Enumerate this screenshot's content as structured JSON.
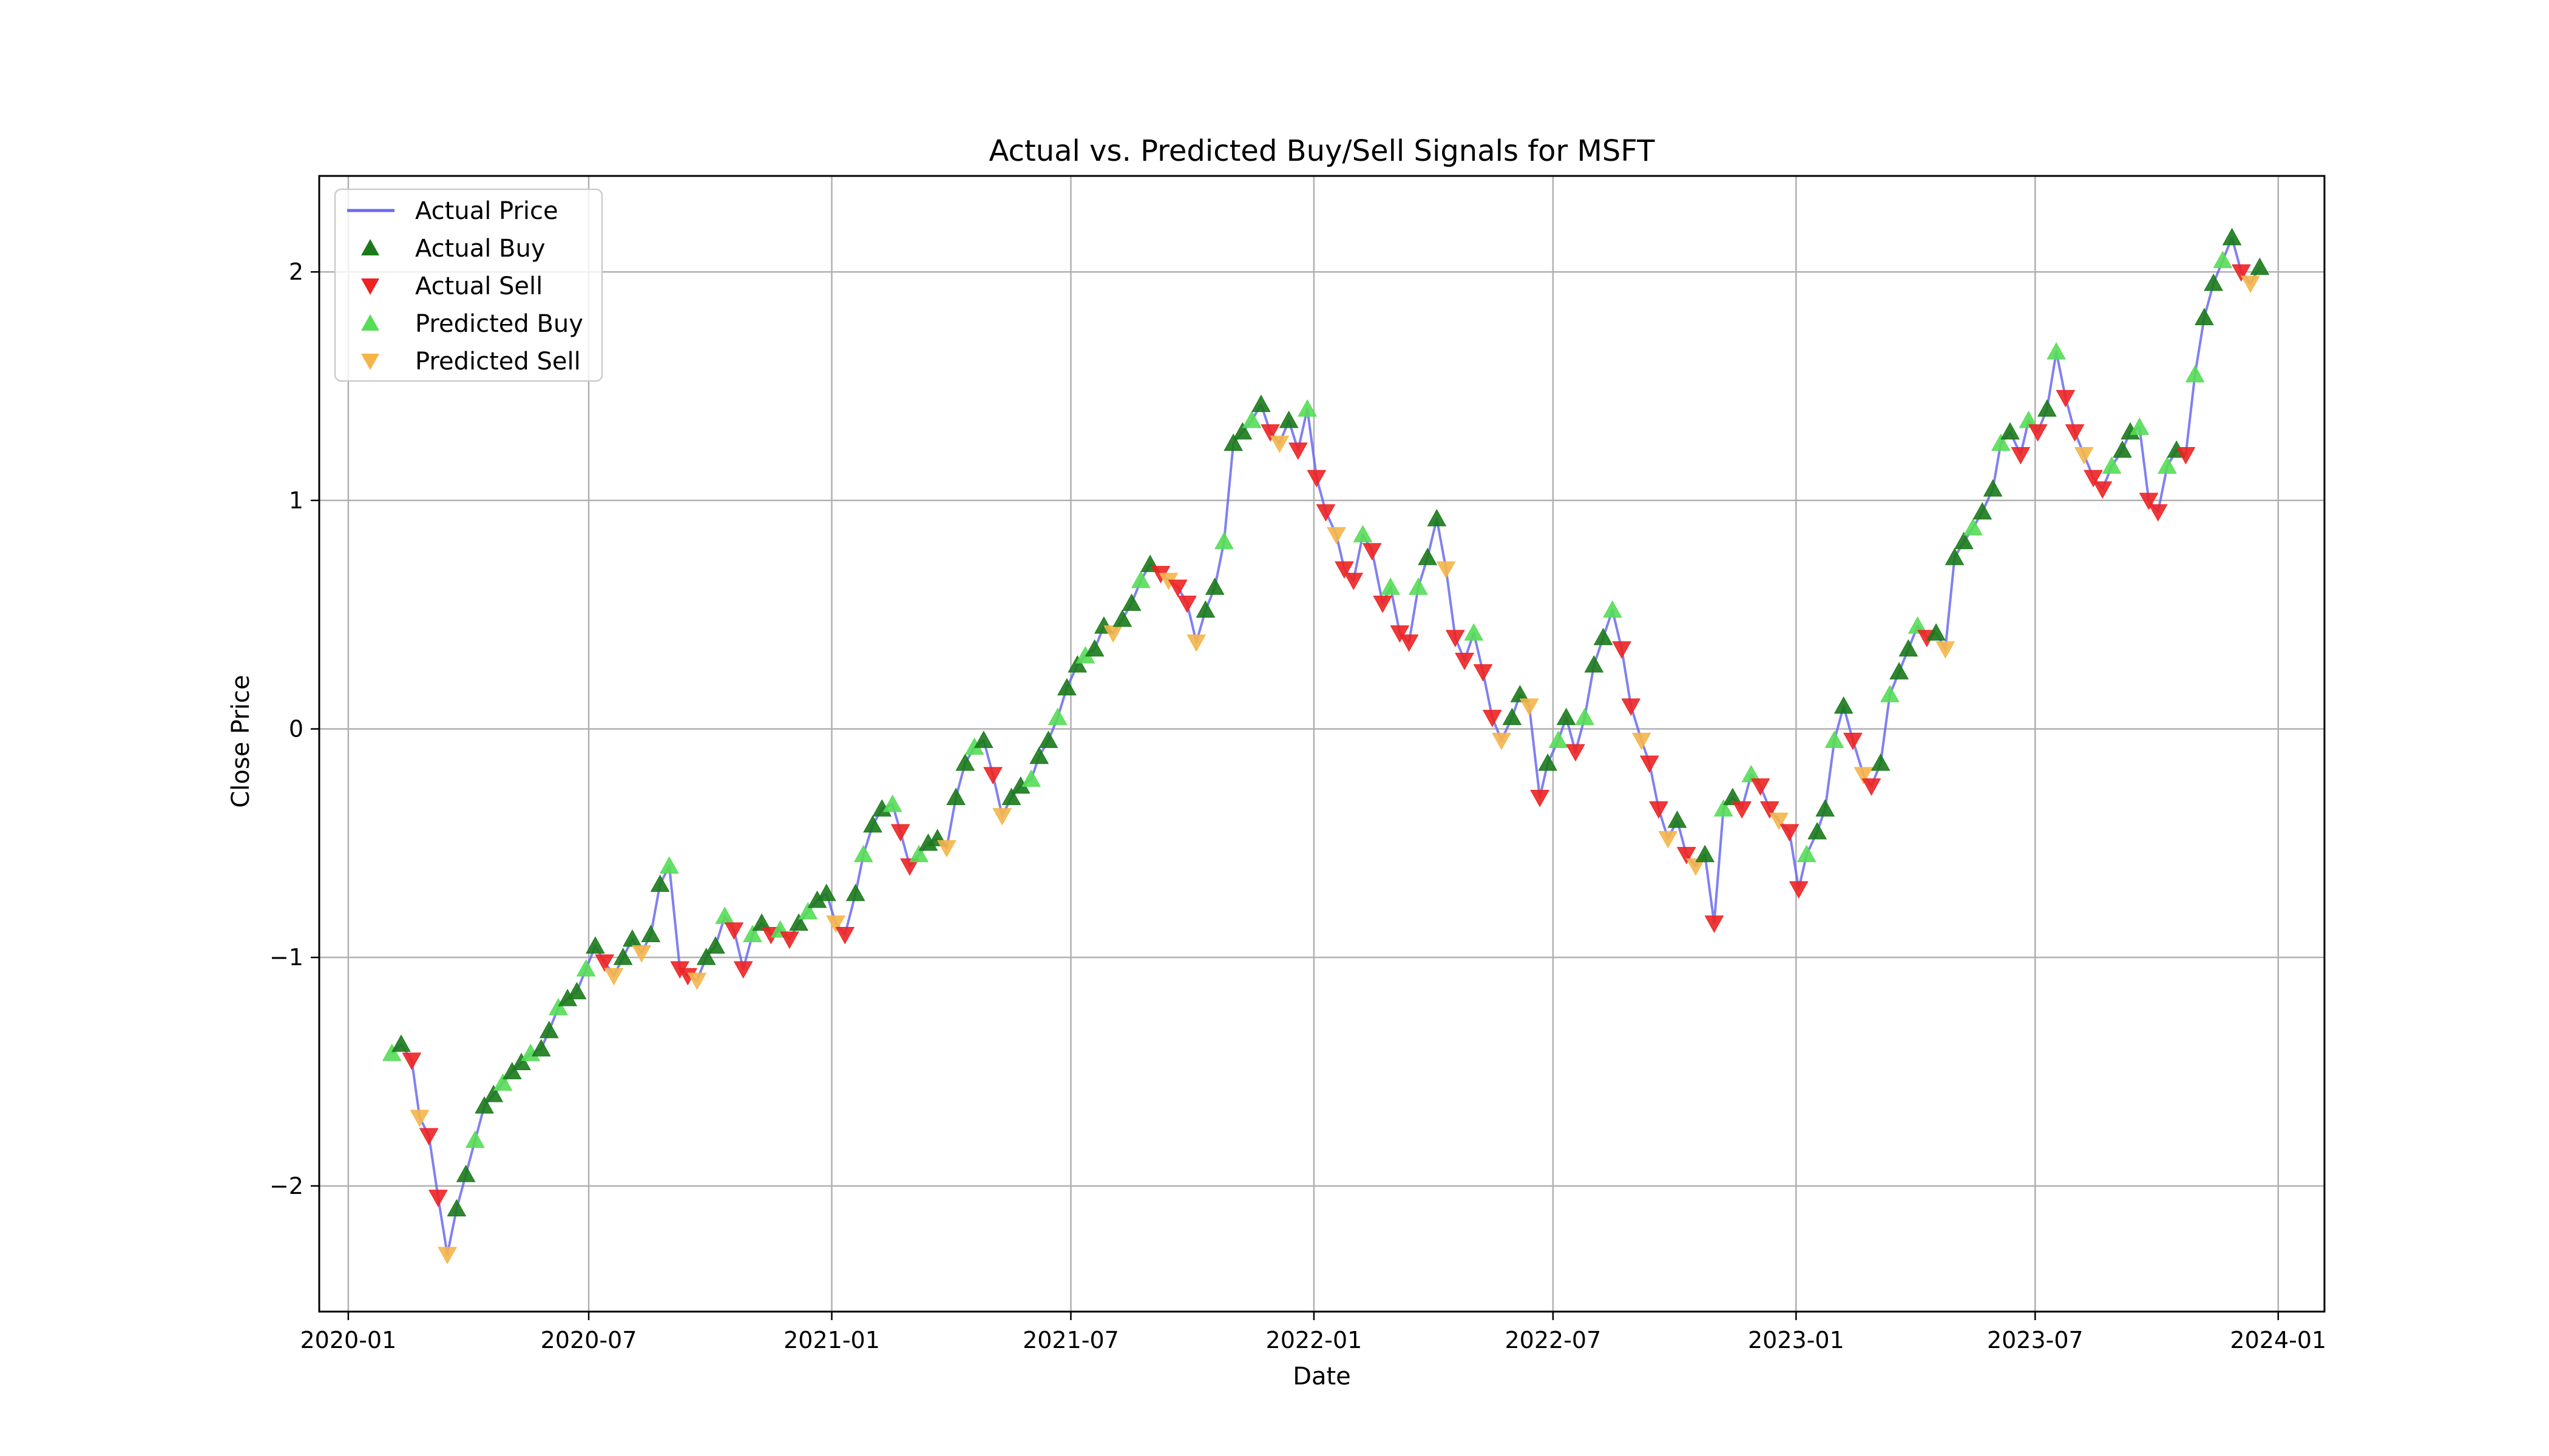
{
  "chart_data": {
    "type": "scatter",
    "title": "Actual vs. Predicted Buy/Sell Signals for MSFT",
    "xlabel": "Date",
    "ylabel": "Close Price",
    "xlim": [
      "2019-12-10",
      "2024-02-05"
    ],
    "ylim": [
      -2.55,
      2.42
    ],
    "grid": true,
    "legend_position": "top-left",
    "x_ticks": [
      "2020-01",
      "2020-07",
      "2021-01",
      "2021-07",
      "2022-01",
      "2022-07",
      "2023-01",
      "2023-07",
      "2024-01"
    ],
    "y_ticks": [
      -2,
      -1,
      0,
      1,
      2
    ],
    "y_tick_labels": [
      "−2",
      "−1",
      "0",
      "1",
      "2"
    ],
    "legend": [
      {
        "key": "actual_price",
        "label": "Actual Price"
      },
      {
        "key": "actual_buy",
        "label": "Actual Buy"
      },
      {
        "key": "actual_sell",
        "label": "Actual Sell"
      },
      {
        "key": "predicted_buy",
        "label": "Predicted Buy"
      },
      {
        "key": "predicted_sell",
        "label": "Predicted Sell"
      }
    ],
    "colors": {
      "actual_price": "#6a6aee",
      "actual_buy": "#1a7a1a",
      "actual_sell": "#ee2222",
      "predicted_buy": "#55dd55",
      "predicted_sell": "#f5b54a"
    },
    "price": [
      [
        "2020-02-03",
        -1.42
      ],
      [
        "2020-02-10",
        -1.38
      ],
      [
        "2020-02-18",
        -1.45
      ],
      [
        "2020-02-24",
        -1.7
      ],
      [
        "2020-03-02",
        -1.78
      ],
      [
        "2020-03-09",
        -2.05
      ],
      [
        "2020-03-16",
        -2.3
      ],
      [
        "2020-03-23",
        -2.1
      ],
      [
        "2020-03-30",
        -1.95
      ],
      [
        "2020-04-06",
        -1.8
      ],
      [
        "2020-04-13",
        -1.65
      ],
      [
        "2020-04-20",
        -1.6
      ],
      [
        "2020-04-27",
        -1.55
      ],
      [
        "2020-05-04",
        -1.5
      ],
      [
        "2020-05-11",
        -1.46
      ],
      [
        "2020-05-18",
        -1.42
      ],
      [
        "2020-05-26",
        -1.4
      ],
      [
        "2020-06-01",
        -1.32
      ],
      [
        "2020-06-08",
        -1.22
      ],
      [
        "2020-06-15",
        -1.18
      ],
      [
        "2020-06-22",
        -1.15
      ],
      [
        "2020-06-29",
        -1.05
      ],
      [
        "2020-07-06",
        -0.95
      ],
      [
        "2020-07-13",
        -1.02
      ],
      [
        "2020-07-20",
        -1.08
      ],
      [
        "2020-07-27",
        -1.0
      ],
      [
        "2020-08-03",
        -0.92
      ],
      [
        "2020-08-10",
        -0.98
      ],
      [
        "2020-08-17",
        -0.9
      ],
      [
        "2020-08-24",
        -0.68
      ],
      [
        "2020-08-31",
        -0.6
      ],
      [
        "2020-09-08",
        -1.05
      ],
      [
        "2020-09-14",
        -1.08
      ],
      [
        "2020-09-21",
        -1.1
      ],
      [
        "2020-09-28",
        -1.0
      ],
      [
        "2020-10-05",
        -0.95
      ],
      [
        "2020-10-12",
        -0.82
      ],
      [
        "2020-10-19",
        -0.88
      ],
      [
        "2020-10-26",
        -1.05
      ],
      [
        "2020-11-02",
        -0.9
      ],
      [
        "2020-11-09",
        -0.85
      ],
      [
        "2020-11-16",
        -0.9
      ],
      [
        "2020-11-23",
        -0.88
      ],
      [
        "2020-11-30",
        -0.92
      ],
      [
        "2020-12-07",
        -0.85
      ],
      [
        "2020-12-14",
        -0.8
      ],
      [
        "2020-12-21",
        -0.75
      ],
      [
        "2020-12-28",
        -0.72
      ],
      [
        "2021-01-04",
        -0.85
      ],
      [
        "2021-01-11",
        -0.9
      ],
      [
        "2021-01-19",
        -0.72
      ],
      [
        "2021-01-25",
        -0.55
      ],
      [
        "2021-02-01",
        -0.42
      ],
      [
        "2021-02-08",
        -0.35
      ],
      [
        "2021-02-16",
        -0.33
      ],
      [
        "2021-02-22",
        -0.45
      ],
      [
        "2021-03-01",
        -0.6
      ],
      [
        "2021-03-08",
        -0.55
      ],
      [
        "2021-03-15",
        -0.5
      ],
      [
        "2021-03-22",
        -0.48
      ],
      [
        "2021-03-29",
        -0.52
      ],
      [
        "2021-04-05",
        -0.3
      ],
      [
        "2021-04-12",
        -0.15
      ],
      [
        "2021-04-19",
        -0.08
      ],
      [
        "2021-04-26",
        -0.05
      ],
      [
        "2021-05-03",
        -0.2
      ],
      [
        "2021-05-10",
        -0.38
      ],
      [
        "2021-05-17",
        -0.3
      ],
      [
        "2021-05-24",
        -0.25
      ],
      [
        "2021-06-01",
        -0.22
      ],
      [
        "2021-06-07",
        -0.12
      ],
      [
        "2021-06-14",
        -0.05
      ],
      [
        "2021-06-21",
        0.05
      ],
      [
        "2021-06-28",
        0.18
      ],
      [
        "2021-07-06",
        0.28
      ],
      [
        "2021-07-12",
        0.32
      ],
      [
        "2021-07-19",
        0.35
      ],
      [
        "2021-07-26",
        0.45
      ],
      [
        "2021-08-02",
        0.42
      ],
      [
        "2021-08-09",
        0.48
      ],
      [
        "2021-08-16",
        0.55
      ],
      [
        "2021-08-23",
        0.65
      ],
      [
        "2021-08-30",
        0.72
      ],
      [
        "2021-09-07",
        0.68
      ],
      [
        "2021-09-13",
        0.65
      ],
      [
        "2021-09-20",
        0.62
      ],
      [
        "2021-09-27",
        0.55
      ],
      [
        "2021-10-04",
        0.38
      ],
      [
        "2021-10-11",
        0.52
      ],
      [
        "2021-10-18",
        0.62
      ],
      [
        "2021-10-25",
        0.82
      ],
      [
        "2021-11-01",
        1.25
      ],
      [
        "2021-11-08",
        1.3
      ],
      [
        "2021-11-15",
        1.35
      ],
      [
        "2021-11-22",
        1.42
      ],
      [
        "2021-11-29",
        1.3
      ],
      [
        "2021-12-06",
        1.25
      ],
      [
        "2021-12-13",
        1.35
      ],
      [
        "2021-12-20",
        1.22
      ],
      [
        "2021-12-27",
        1.4
      ],
      [
        "2022-01-03",
        1.1
      ],
      [
        "2022-01-10",
        0.95
      ],
      [
        "2022-01-18",
        0.85
      ],
      [
        "2022-01-24",
        0.7
      ],
      [
        "2022-01-31",
        0.65
      ],
      [
        "2022-02-07",
        0.85
      ],
      [
        "2022-02-14",
        0.78
      ],
      [
        "2022-02-22",
        0.55
      ],
      [
        "2022-02-28",
        0.62
      ],
      [
        "2022-03-07",
        0.42
      ],
      [
        "2022-03-14",
        0.38
      ],
      [
        "2022-03-21",
        0.62
      ],
      [
        "2022-03-28",
        0.75
      ],
      [
        "2022-04-04",
        0.92
      ],
      [
        "2022-04-11",
        0.7
      ],
      [
        "2022-04-18",
        0.4
      ],
      [
        "2022-04-25",
        0.3
      ],
      [
        "2022-05-02",
        0.42
      ],
      [
        "2022-05-09",
        0.25
      ],
      [
        "2022-05-16",
        0.05
      ],
      [
        "2022-05-23",
        -0.05
      ],
      [
        "2022-05-31",
        0.05
      ],
      [
        "2022-06-06",
        0.15
      ],
      [
        "2022-06-13",
        0.1
      ],
      [
        "2022-06-21",
        -0.3
      ],
      [
        "2022-06-27",
        -0.15
      ],
      [
        "2022-07-05",
        -0.05
      ],
      [
        "2022-07-11",
        0.05
      ],
      [
        "2022-07-18",
        -0.1
      ],
      [
        "2022-07-25",
        0.05
      ],
      [
        "2022-08-01",
        0.28
      ],
      [
        "2022-08-08",
        0.4
      ],
      [
        "2022-08-15",
        0.52
      ],
      [
        "2022-08-22",
        0.35
      ],
      [
        "2022-08-29",
        0.1
      ],
      [
        "2022-09-06",
        -0.05
      ],
      [
        "2022-09-12",
        -0.15
      ],
      [
        "2022-09-19",
        -0.35
      ],
      [
        "2022-09-26",
        -0.48
      ],
      [
        "2022-10-03",
        -0.4
      ],
      [
        "2022-10-10",
        -0.55
      ],
      [
        "2022-10-17",
        -0.6
      ],
      [
        "2022-10-24",
        -0.55
      ],
      [
        "2022-10-31",
        -0.85
      ],
      [
        "2022-11-07",
        -0.35
      ],
      [
        "2022-11-14",
        -0.3
      ],
      [
        "2022-11-21",
        -0.35
      ],
      [
        "2022-11-28",
        -0.2
      ],
      [
        "2022-12-05",
        -0.25
      ],
      [
        "2022-12-12",
        -0.35
      ],
      [
        "2022-12-19",
        -0.4
      ],
      [
        "2022-12-27",
        -0.45
      ],
      [
        "2023-01-03",
        -0.7
      ],
      [
        "2023-01-09",
        -0.55
      ],
      [
        "2023-01-17",
        -0.45
      ],
      [
        "2023-01-23",
        -0.35
      ],
      [
        "2023-01-30",
        -0.05
      ],
      [
        "2023-02-06",
        0.1
      ],
      [
        "2023-02-13",
        -0.05
      ],
      [
        "2023-02-21",
        -0.2
      ],
      [
        "2023-02-27",
        -0.25
      ],
      [
        "2023-03-06",
        -0.15
      ],
      [
        "2023-03-13",
        0.15
      ],
      [
        "2023-03-20",
        0.25
      ],
      [
        "2023-03-27",
        0.35
      ],
      [
        "2023-04-03",
        0.45
      ],
      [
        "2023-04-10",
        0.4
      ],
      [
        "2023-04-17",
        0.42
      ],
      [
        "2023-04-24",
        0.35
      ],
      [
        "2023-05-01",
        0.75
      ],
      [
        "2023-05-08",
        0.82
      ],
      [
        "2023-05-15",
        0.88
      ],
      [
        "2023-05-22",
        0.95
      ],
      [
        "2023-05-30",
        1.05
      ],
      [
        "2023-06-05",
        1.25
      ],
      [
        "2023-06-12",
        1.3
      ],
      [
        "2023-06-20",
        1.2
      ],
      [
        "2023-06-26",
        1.35
      ],
      [
        "2023-07-03",
        1.3
      ],
      [
        "2023-07-10",
        1.4
      ],
      [
        "2023-07-17",
        1.65
      ],
      [
        "2023-07-24",
        1.45
      ],
      [
        "2023-07-31",
        1.3
      ],
      [
        "2023-08-07",
        1.2
      ],
      [
        "2023-08-14",
        1.1
      ],
      [
        "2023-08-21",
        1.05
      ],
      [
        "2023-08-28",
        1.15
      ],
      [
        "2023-09-05",
        1.22
      ],
      [
        "2023-09-11",
        1.3
      ],
      [
        "2023-09-18",
        1.32
      ],
      [
        "2023-09-25",
        1.0
      ],
      [
        "2023-10-02",
        0.95
      ],
      [
        "2023-10-09",
        1.15
      ],
      [
        "2023-10-16",
        1.22
      ],
      [
        "2023-10-23",
        1.2
      ],
      [
        "2023-10-30",
        1.55
      ],
      [
        "2023-11-06",
        1.8
      ],
      [
        "2023-11-13",
        1.95
      ],
      [
        "2023-11-20",
        2.05
      ],
      [
        "2023-11-27",
        2.15
      ],
      [
        "2023-12-04",
        2.0
      ],
      [
        "2023-12-11",
        1.95
      ],
      [
        "2023-12-18",
        2.02
      ]
    ]
  }
}
